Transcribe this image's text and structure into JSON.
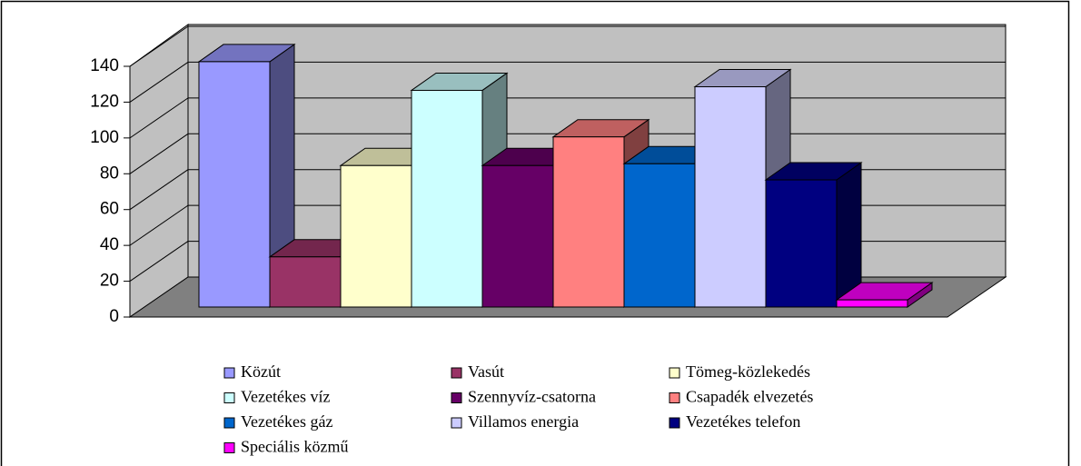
{
  "chart_data": {
    "type": "bar3d",
    "categories": [
      "Közút",
      "Vasút",
      "Tömeg-közlekedés",
      "Vezetékes víz",
      "Szennyvíz-csatorna",
      "Csapadék elvezetés",
      "Vezetékes gáz",
      "Villamos energia",
      "Vezetékes telefon",
      "Speciális közmű"
    ],
    "values": [
      137,
      28,
      79,
      121,
      79,
      95,
      80,
      123,
      71,
      4
    ],
    "colors": [
      "#9999ff",
      "#993366",
      "#ffffcc",
      "#ccffff",
      "#660066",
      "#ff8080",
      "#0066cc",
      "#ccccff",
      "#000080",
      "#ff00ff"
    ],
    "ylim": [
      0,
      140
    ],
    "yticks": [
      0,
      20,
      40,
      60,
      80,
      100,
      120,
      140
    ],
    "grid": true
  }
}
